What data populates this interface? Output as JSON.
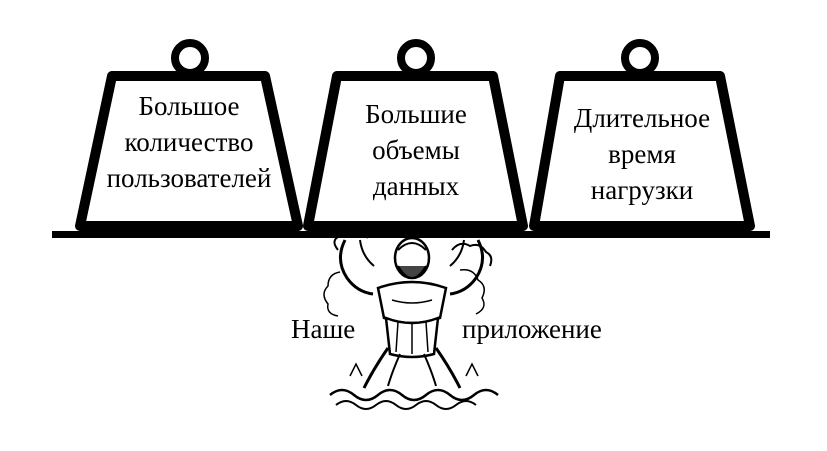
{
  "weights": [
    {
      "lines": [
        "Большое",
        "количество",
        "пользователей"
      ]
    },
    {
      "lines": [
        "Большие",
        "объемы",
        "данных"
      ]
    },
    {
      "lines": [
        "Длительное",
        "время",
        "нагрузки"
      ]
    }
  ],
  "caption": {
    "left": "Наше",
    "right": "приложение"
  },
  "icons": {
    "figure": "atlas-figure-icon",
    "weight": "kettlebell-weight-icon"
  },
  "colors": {
    "stroke": "#000000",
    "background": "#ffffff"
  }
}
